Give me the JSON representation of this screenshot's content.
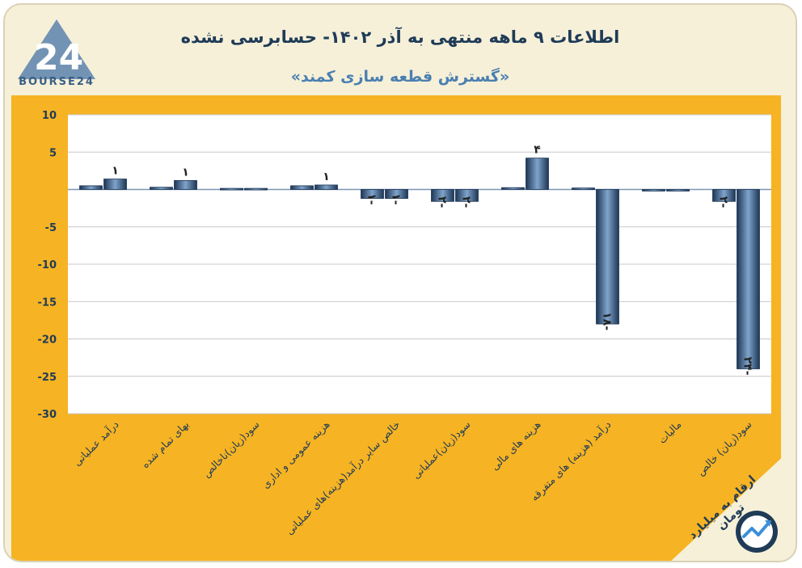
{
  "header": {
    "title": "اطلاعات ۹ ماهه منتهی به آذر ۱۴۰۲- حسابرسی نشده",
    "subtitle": "«گسترش قطعه سازی کمند»",
    "logo_text": "BOURSE24"
  },
  "footer": {
    "unit_note": "ارقام به میلیارد تومان"
  },
  "colors": {
    "background": "#f6f0d9",
    "panel": "#f6b323",
    "plot": "#ffffff",
    "bar": "#3e6590",
    "bar_light": "#7fa4cb",
    "bar_dark": "#1d3554",
    "text": "#1f3b57"
  },
  "chart_data": {
    "type": "bar",
    "title": "",
    "xlabel": "",
    "ylabel": "",
    "ylim": [
      -30,
      10
    ],
    "yticks": [
      10,
      5,
      -5,
      -10,
      -15,
      -20,
      -25,
      -30
    ],
    "ytick_labels": [
      "10",
      "5",
      "-5",
      "-10",
      "-15",
      "-20",
      "-25",
      "-30"
    ],
    "grid": true,
    "categories": [
      "درآمد عملیاتی",
      "بهای تمام شده",
      "سود(زیان)ناخالص",
      "هزینه عمومی و اداری",
      "خالص سایر درآمد(هزینه)های عملیاتی",
      "سود(زیان)عملیاتی",
      "هزینه های مالی",
      "درآمد (هزینه) های متفرقه",
      "مالیات",
      "سود(زیان) خالص"
    ],
    "series": [
      {
        "values": [
          0.5,
          0.3,
          0.15,
          0.5,
          -1.2,
          -1.6,
          0.25,
          0.2,
          0,
          -1.6
        ],
        "labels": [
          "",
          "",
          "",
          "",
          "-۱",
          "-۲",
          "",
          "",
          "",
          "-۲"
        ]
      },
      {
        "values": [
          1.4,
          1.2,
          0.15,
          0.6,
          -1.2,
          -1.6,
          4.2,
          -18,
          0,
          -24
        ],
        "labels": [
          "۱",
          "۱",
          "",
          "۱",
          "-۱",
          "-۲",
          "۴",
          "-۱۸",
          "",
          "-۲۴"
        ]
      }
    ]
  }
}
